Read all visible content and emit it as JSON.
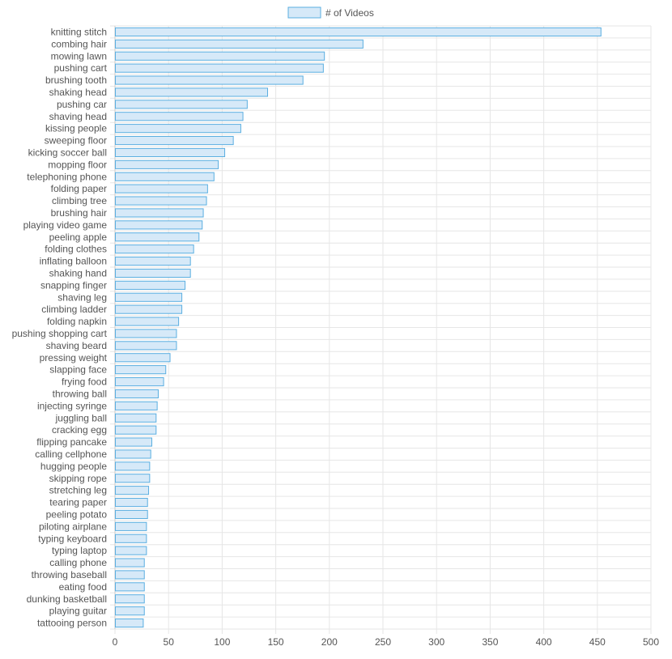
{
  "chart_data": {
    "type": "bar",
    "orientation": "horizontal",
    "legend": {
      "position": "top-center",
      "label": "# of Videos"
    },
    "colors": {
      "bar_fill": "#d6e9f8",
      "bar_stroke": "#5aaee0",
      "grid": "#e6e6e6",
      "text": "#555555"
    },
    "xlim": [
      0,
      500
    ],
    "xticks": [
      0,
      50,
      100,
      150,
      200,
      250,
      300,
      350,
      400,
      450,
      500
    ],
    "grid": true,
    "categories": [
      "knitting stitch",
      "combing hair",
      "mowing lawn",
      "pushing cart",
      "brushing tooth",
      "shaking head",
      "pushing car",
      "shaving head",
      "kissing people",
      "sweeping floor",
      "kicking soccer ball",
      "mopping floor",
      "telephoning phone",
      "folding paper",
      "climbing tree",
      "brushing hair",
      "playing video game",
      "peeling apple",
      "folding clothes",
      "inflating balloon",
      "shaking hand",
      "snapping finger",
      "shaving leg",
      "climbing ladder",
      "folding napkin",
      "pushing shopping cart",
      "shaving beard",
      "pressing weight",
      "slapping face",
      "frying food",
      "throwing ball",
      "injecting syringe",
      "juggling ball",
      "cracking egg",
      "flipping pancake",
      "calling cellphone",
      "hugging people",
      "skipping rope",
      "stretching leg",
      "tearing paper",
      "peeling potato",
      "piloting airplane",
      "typing keyboard",
      "typing laptop",
      "calling phone",
      "throwing baseball",
      "eating food",
      "dunking basketball",
      "playing guitar",
      "tattooing person"
    ],
    "series": [
      {
        "name": "# of Videos",
        "values": [
          453,
          231,
          195,
          194,
          175,
          142,
          123,
          119,
          117,
          110,
          102,
          96,
          92,
          86,
          85,
          82,
          81,
          78,
          73,
          70,
          70,
          65,
          62,
          62,
          59,
          57,
          57,
          51,
          47,
          45,
          40,
          39,
          38,
          38,
          34,
          33,
          32,
          32,
          31,
          30,
          30,
          29,
          29,
          29,
          27,
          27,
          27,
          27,
          27,
          26
        ]
      }
    ]
  }
}
